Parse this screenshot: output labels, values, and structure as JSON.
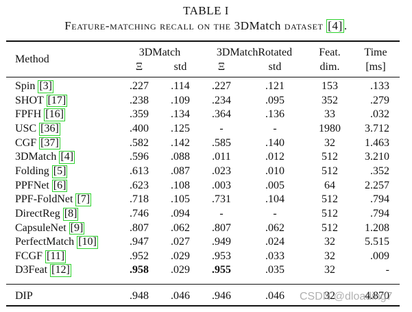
{
  "table_label": "TABLE I",
  "caption": {
    "prefix": "F",
    "smallcaps": "eature-matching recall on the ",
    "name": "3DMatch",
    "suffix_sc": " dataset ",
    "ref": "[4]",
    "end": "."
  },
  "headers": {
    "method": "Method",
    "group_3dmatch": "3DMatch",
    "group_rotated": "3DMatchRotated",
    "feat": "Feat.",
    "dim": "dim.",
    "time": "Time",
    "time_unit": "[ms]",
    "xi": "Ξ",
    "std": "std"
  },
  "rows": [
    {
      "name": "Spin",
      "ref": "[3]",
      "m_xi": ".227",
      "m_std": ".114",
      "r_xi": ".227",
      "r_std": ".121",
      "dim": "153",
      "time": ".133"
    },
    {
      "name": "SHOT",
      "ref": "[17]",
      "m_xi": ".238",
      "m_std": ".109",
      "r_xi": ".234",
      "r_std": ".095",
      "dim": "352",
      "time": ".279"
    },
    {
      "name": "FPFH",
      "ref": "[16]",
      "m_xi": ".359",
      "m_std": ".134",
      "r_xi": ".364",
      "r_std": ".136",
      "dim": "33",
      "time": ".032"
    },
    {
      "name": "USC",
      "ref": "[36]",
      "m_xi": ".400",
      "m_std": ".125",
      "r_xi": "-",
      "r_std": "-",
      "dim": "1980",
      "time": "3.712"
    },
    {
      "name": "CGF",
      "ref": "[37]",
      "m_xi": ".582",
      "m_std": ".142",
      "r_xi": ".585",
      "r_std": ".140",
      "dim": "32",
      "time": "1.463"
    },
    {
      "name": "3DMatch",
      "ref": "[4]",
      "m_xi": ".596",
      "m_std": ".088",
      "r_xi": ".011",
      "r_std": ".012",
      "dim": "512",
      "time": "3.210"
    },
    {
      "name": "Folding",
      "ref": "[5]",
      "m_xi": ".613",
      "m_std": ".087",
      "r_xi": ".023",
      "r_std": ".010",
      "dim": "512",
      "time": ".352"
    },
    {
      "name": "PPFNet",
      "ref": "[6]",
      "m_xi": ".623",
      "m_std": ".108",
      "r_xi": ".003",
      "r_std": ".005",
      "dim": "64",
      "time": "2.257"
    },
    {
      "name": "PPF-FoldNet",
      "ref": "[7]",
      "m_xi": ".718",
      "m_std": ".105",
      "r_xi": ".731",
      "r_std": ".104",
      "dim": "512",
      "time": ".794"
    },
    {
      "name": "DirectReg",
      "ref": "[8]",
      "m_xi": ".746",
      "m_std": ".094",
      "r_xi": "-",
      "r_std": "-",
      "dim": "512",
      "time": ".794"
    },
    {
      "name": "CapsuleNet",
      "ref": "[9]",
      "m_xi": ".807",
      "m_std": ".062",
      "r_xi": ".807",
      "r_std": ".062",
      "dim": "512",
      "time": "1.208"
    },
    {
      "name": "PerfectMatch",
      "ref": "[10]",
      "m_xi": ".947",
      "m_std": ".027",
      "r_xi": ".949",
      "r_std": ".024",
      "dim": "32",
      "time": "5.515"
    },
    {
      "name": "FCGF",
      "ref": "[11]",
      "m_xi": ".952",
      "m_std": ".029",
      "r_xi": ".953",
      "r_std": ".033",
      "dim": "32",
      "time": ".009"
    },
    {
      "name": "D3Feat",
      "ref": "[12]",
      "m_xi": ".958",
      "m_std": ".029",
      "r_xi": ".955",
      "r_std": ".035",
      "dim": "32",
      "time": "-",
      "bold_m_xi": true,
      "bold_r_xi": true
    }
  ],
  "dip": {
    "name": "DIP",
    "m_xi": ".948",
    "m_std": ".046",
    "r_xi": ".946",
    "r_std": ".046",
    "dim": "32",
    "time": "4.870"
  },
  "watermark": "CSDN @dloading7"
}
